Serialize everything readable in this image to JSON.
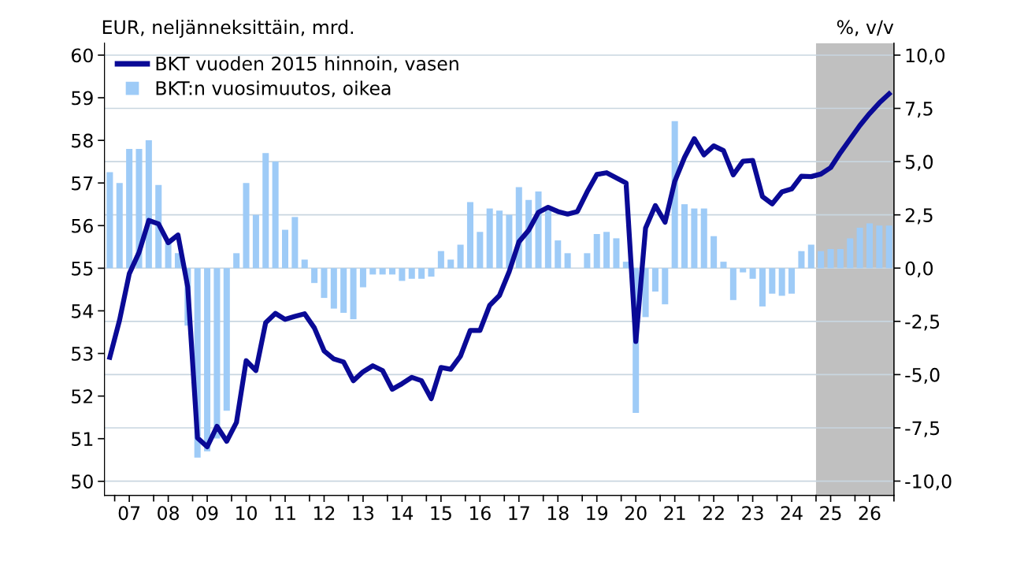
{
  "chart_data": {
    "type": "line",
    "ylabel": "EUR, neljänneksittäin, mrd.",
    "y2label": "%, v/v",
    "categories": [
      null,
      null,
      "07",
      null,
      null,
      null,
      "08",
      null,
      null,
      null,
      "09",
      null,
      null,
      null,
      "10",
      null,
      null,
      null,
      "11",
      null,
      null,
      null,
      "12",
      null,
      null,
      null,
      "13",
      null,
      null,
      null,
      "14",
      null,
      null,
      null,
      "15",
      null,
      null,
      null,
      "16",
      null,
      null,
      null,
      "17",
      null,
      null,
      null,
      "18",
      null,
      null,
      null,
      "19",
      null,
      null,
      null,
      "20",
      null,
      null,
      null,
      "21",
      null,
      null,
      null,
      "22",
      null,
      null,
      null,
      "23",
      null,
      null,
      null,
      "24",
      null,
      null,
      null,
      "25",
      null,
      null,
      null,
      "26",
      null,
      null
    ],
    "series": [
      {
        "name": "BKT vuoden 2015 hinnoin, vasen",
        "color": "#0a0a96",
        "values": [
          52.91,
          53.78,
          54.87,
          55.37,
          56.12,
          56.04,
          55.6,
          55.78,
          54.56,
          51.02,
          50.81,
          51.29,
          50.94,
          51.38,
          52.83,
          52.6,
          53.72,
          53.94,
          53.8,
          53.87,
          53.93,
          53.6,
          53.06,
          52.87,
          52.8,
          52.36,
          52.57,
          52.71,
          52.6,
          52.16,
          52.29,
          52.44,
          52.36,
          51.94,
          52.67,
          52.63,
          52.94,
          53.54,
          53.54,
          54.13,
          54.36,
          54.92,
          55.62,
          55.89,
          56.31,
          56.43,
          56.33,
          56.27,
          56.33,
          56.79,
          57.2,
          57.24,
          57.12,
          57.0,
          53.28,
          55.94,
          56.47,
          56.08,
          57.04,
          57.6,
          58.04,
          57.66,
          57.87,
          57.76,
          57.19,
          57.51,
          57.53,
          56.68,
          56.51,
          56.79,
          56.86,
          57.16,
          57.15,
          57.21,
          57.36,
          57.71,
          58.03,
          58.35,
          58.63,
          58.88,
          59.09
        ]
      },
      {
        "name": "BKT:n vuosimuutos, oikea",
        "type": "bar",
        "axis": "y2",
        "color": "#9ecbf7",
        "values": [
          4.5,
          4.0,
          5.6,
          5.6,
          6.0,
          3.9,
          1.2,
          0.7,
          -2.7,
          -8.9,
          -8.6,
          -8.0,
          -6.7,
          0.7,
          4.0,
          2.5,
          5.4,
          5.0,
          1.8,
          2.4,
          0.4,
          -0.7,
          -1.4,
          -1.9,
          -2.1,
          -2.4,
          -0.9,
          -0.3,
          -0.3,
          -0.3,
          -0.6,
          -0.5,
          -0.5,
          -0.4,
          0.8,
          0.4,
          1.1,
          3.1,
          1.7,
          2.8,
          2.7,
          2.5,
          3.8,
          3.2,
          3.6,
          2.7,
          1.3,
          0.7,
          0.0,
          0.7,
          1.6,
          1.7,
          1.4,
          0.3,
          -6.8,
          -2.3,
          -1.1,
          -1.7,
          6.9,
          3.0,
          2.8,
          2.8,
          1.5,
          0.3,
          -1.5,
          -0.2,
          -0.5,
          -1.8,
          -1.2,
          -1.3,
          -1.2,
          0.8,
          1.1,
          0.8,
          0.9,
          0.9,
          1.4,
          1.9,
          2.1,
          2.0,
          2.0
        ]
      }
    ],
    "ylim": [
      49.67,
      60.28
    ],
    "yticks": [
      50,
      51,
      52,
      53,
      54,
      55,
      56,
      57,
      58,
      59,
      60
    ],
    "y2lim": [
      -10.67,
      10.56
    ],
    "y2ticks": [
      {
        "value": -10,
        "label": "-10,0"
      },
      {
        "value": -7.5,
        "label": "-7,5"
      },
      {
        "value": -5,
        "label": "-5,0"
      },
      {
        "value": -2.5,
        "label": "-2,5"
      },
      {
        "value": 0,
        "label": "0,0"
      },
      {
        "value": 2.5,
        "label": "2,5"
      },
      {
        "value": 5,
        "label": "5,0"
      },
      {
        "value": 7.5,
        "label": "7,5"
      },
      {
        "value": 10,
        "label": "10,0"
      }
    ],
    "grid": "y",
    "legend": "top left"
  }
}
